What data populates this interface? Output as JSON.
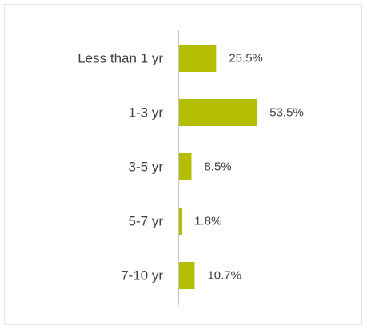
{
  "chart_data": {
    "type": "bar",
    "orientation": "horizontal",
    "categories": [
      "Less than 1 yr",
      "1-3 yr",
      "3-5 yr",
      "5-7 yr",
      "7-10 yr"
    ],
    "values": [
      25.5,
      53.5,
      8.5,
      1.8,
      10.7
    ],
    "value_labels": [
      "25.5%",
      "53.5%",
      "8.5%",
      "1.8%",
      "10.7%"
    ],
    "unit": "%",
    "title": "",
    "xlabel": "",
    "ylabel": "",
    "xlim": [
      0,
      100
    ],
    "grid": false,
    "legend": "none",
    "bar_color": "#b5bd00",
    "axis_color": "#8c8c8c",
    "text_color": "#404040"
  }
}
